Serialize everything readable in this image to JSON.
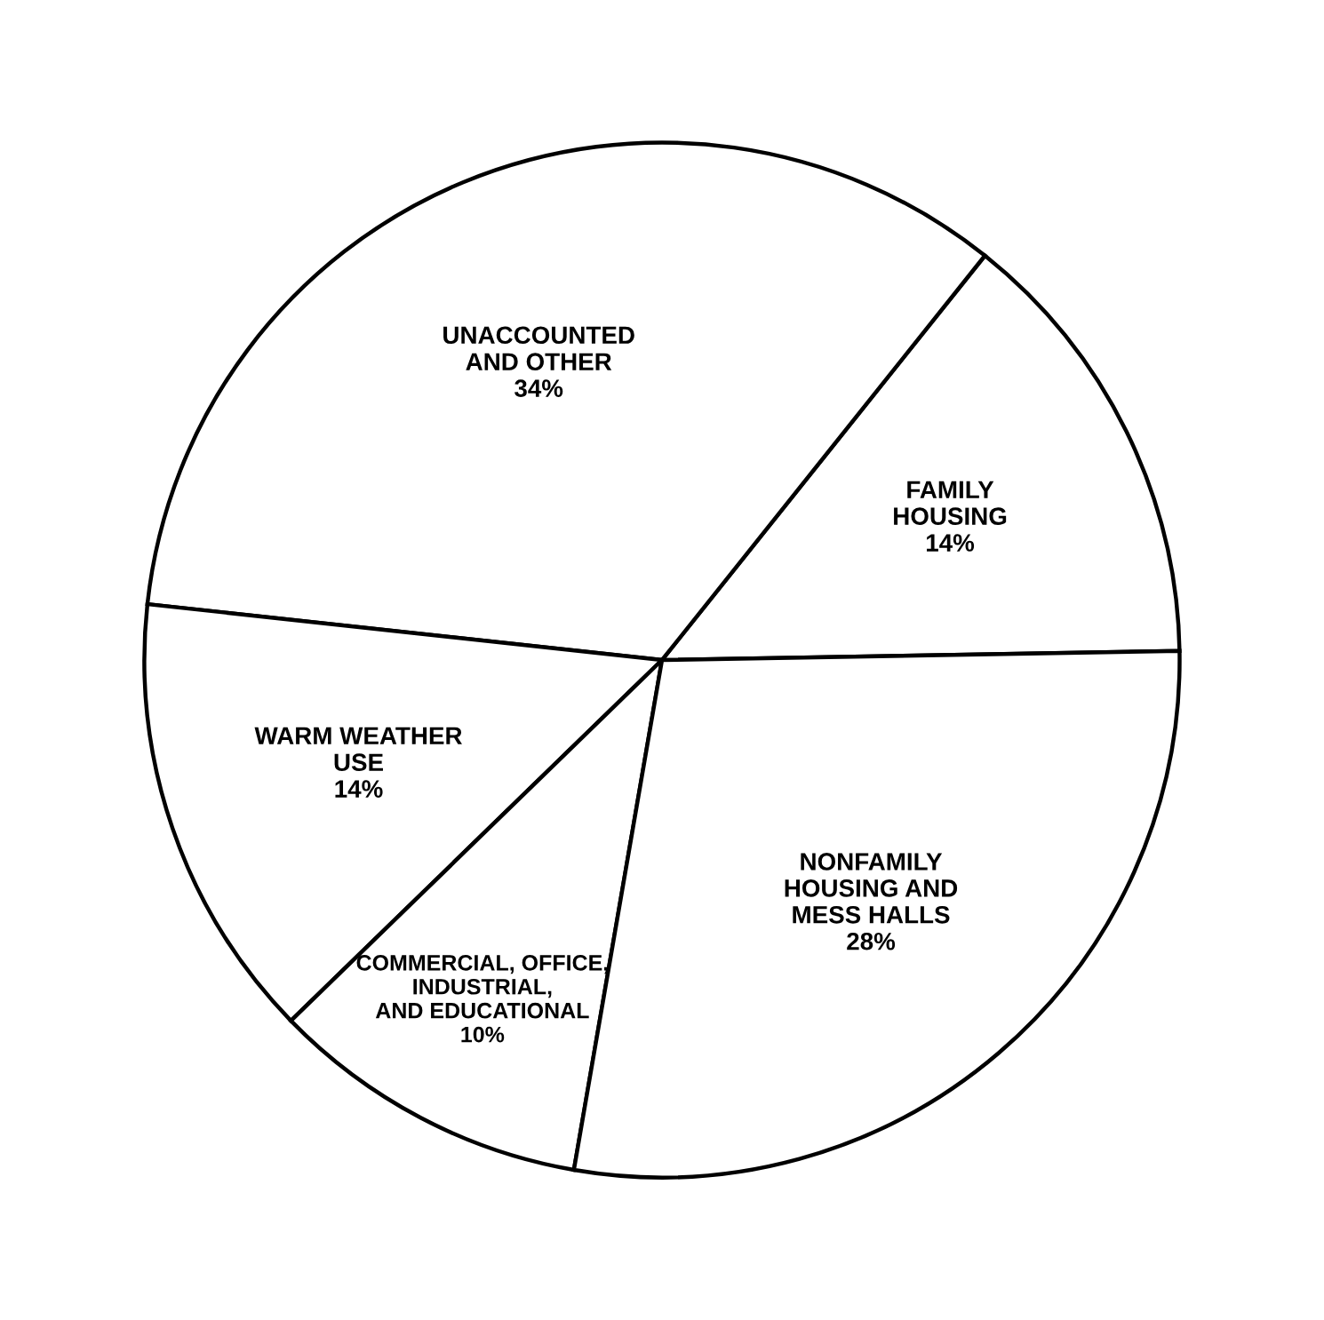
{
  "chart_data": {
    "type": "pie",
    "categories": [
      "FAMILY\nHOUSING",
      "UNACCOUNTED\nAND OTHER",
      "WARM WEATHER\nUSE",
      "COMMERCIAL, OFFICE,\nINDUSTRIAL,\nAND EDUCATIONAL",
      "NONFAMILY\nHOUSING AND\nMESS HALLS"
    ],
    "values": [
      14,
      34,
      14,
      10,
      28
    ],
    "value_labels": [
      "14%",
      "34%",
      "14%",
      "10%",
      "28%"
    ],
    "colors": [
      "#ffffff",
      "#ffffff",
      "#ffffff",
      "#ffffff",
      "#ffffff"
    ]
  }
}
